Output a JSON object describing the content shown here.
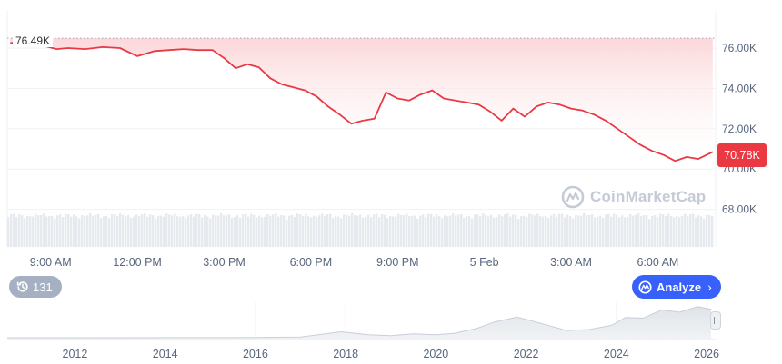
{
  "chart_data": {
    "type": "line",
    "currency_prefix": "",
    "start_value_label": "76.49K",
    "current_value_label": "70.78K",
    "start_value": 76.49,
    "current_value": 70.78,
    "y_unit": "K",
    "ylim": [
      67.0,
      78.0
    ],
    "y_ticks": [
      {
        "value": 76,
        "label": "76.00K"
      },
      {
        "value": 74,
        "label": "74.00K"
      },
      {
        "value": 72,
        "label": "72.00K"
      },
      {
        "value": 70,
        "label": "70.00K"
      },
      {
        "value": 68,
        "label": "68.00K"
      }
    ],
    "x_range_hours": [
      7.5,
      32.0
    ],
    "x_ticks": [
      {
        "value": 9,
        "label": "9:00 AM"
      },
      {
        "value": 12,
        "label": "12:00 PM"
      },
      {
        "value": 15,
        "label": "3:00 PM"
      },
      {
        "value": 18,
        "label": "6:00 PM"
      },
      {
        "value": 21,
        "label": "9:00 PM"
      },
      {
        "value": 24,
        "label": "5 Feb"
      },
      {
        "value": 27,
        "label": "3:00 AM"
      },
      {
        "value": 30,
        "label": "6:00 AM"
      }
    ],
    "x_hours": [
      7.6,
      8.2,
      8.8,
      9.2,
      9.6,
      10.2,
      10.8,
      11.4,
      12.0,
      12.6,
      13.1,
      13.6,
      14.1,
      14.6,
      15.0,
      15.4,
      15.8,
      16.2,
      16.6,
      17.0,
      17.4,
      17.8,
      18.2,
      18.6,
      19.0,
      19.4,
      19.8,
      20.2,
      20.6,
      21.0,
      21.4,
      21.8,
      22.2,
      22.6,
      23.0,
      23.4,
      23.8,
      24.2,
      24.6,
      25.0,
      25.4,
      25.8,
      26.2,
      26.6,
      27.0,
      27.4,
      27.8,
      28.2,
      28.6,
      29.0,
      29.4,
      29.8,
      30.2,
      30.6,
      31.0,
      31.4,
      31.9
    ],
    "series": [
      {
        "values": [
          76.25,
          76.35,
          76.1,
          75.95,
          76.0,
          75.95,
          76.05,
          76.0,
          75.6,
          75.85,
          75.9,
          75.95,
          75.9,
          75.9,
          75.5,
          75.0,
          75.2,
          75.05,
          74.5,
          74.2,
          74.05,
          73.9,
          73.6,
          73.1,
          72.7,
          72.25,
          72.4,
          72.5,
          73.8,
          73.5,
          73.4,
          73.7,
          73.9,
          73.5,
          73.4,
          73.3,
          73.2,
          72.85,
          72.4,
          73.0,
          72.6,
          73.1,
          73.3,
          73.2,
          73.0,
          72.9,
          72.7,
          72.4,
          72.0,
          71.6,
          71.2,
          70.9,
          70.7,
          70.4,
          70.6,
          70.5,
          70.85
        ]
      }
    ],
    "navigator": {
      "x_ticks": [
        {
          "value": 2012,
          "label": "2012"
        },
        {
          "value": 2014,
          "label": "2014"
        },
        {
          "value": 2016,
          "label": "2016"
        },
        {
          "value": 2018,
          "label": "2018"
        },
        {
          "value": 2020,
          "label": "2020"
        },
        {
          "value": 2022,
          "label": "2022"
        },
        {
          "value": 2024,
          "label": "2024"
        },
        {
          "value": 2026,
          "label": "2026"
        }
      ],
      "x_range": [
        2010.5,
        2026.2
      ],
      "years": [
        2010.5,
        2012,
        2013,
        2014,
        2015,
        2016,
        2017,
        2017.9,
        2018.5,
        2019,
        2019.5,
        2020,
        2020.4,
        2020.9,
        2021.3,
        2021.8,
        2022.3,
        2022.9,
        2023.4,
        2023.9,
        2024.2,
        2024.6,
        2025.0,
        2025.4,
        2025.8,
        2026.1
      ],
      "relative_price": [
        0.0,
        0.0,
        0.0,
        0.003,
        0.004,
        0.005,
        0.02,
        0.18,
        0.09,
        0.06,
        0.12,
        0.09,
        0.13,
        0.28,
        0.48,
        0.63,
        0.45,
        0.22,
        0.25,
        0.38,
        0.62,
        0.6,
        0.85,
        0.78,
        0.95,
        0.87
      ]
    }
  },
  "history_badge": {
    "icon": "history-icon",
    "count": "131"
  },
  "analyze_button": {
    "icon": "analyze-icon",
    "label": "Analyze",
    "chevron": "chevron-right-icon"
  },
  "watermark": {
    "text": "CoinMarketCap",
    "icon": "coinmarketcap-logo"
  },
  "colors": {
    "line": "#ea3943",
    "fill_top": "#fbd3d6",
    "grid": "#eff2f5",
    "volume": "#e6e9ee",
    "navigator_fill": "#e9ecf0",
    "accent_blue": "#3861fb",
    "badge_gray": "#a6b0c3"
  }
}
